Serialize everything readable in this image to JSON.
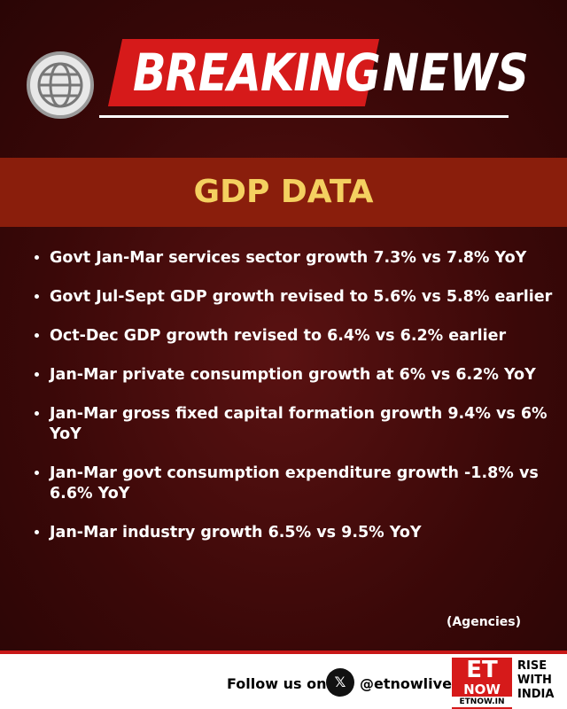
{
  "header": {
    "breaking": "BREAKING",
    "news": "NEWS"
  },
  "section": {
    "title": "GDP DATA"
  },
  "bullets": [
    "Govt Jan-Mar services sector growth 7.3% vs 7.8% YoY",
    "Govt Jul-Sept GDP growth revised to 5.6% vs 5.8% earlier",
    "Oct-Dec GDP growth revised to 6.4% vs 6.2% earlier",
    "Jan-Mar private consumption growth at 6% vs 6.2% YoY",
    "Jan-Mar gross fixed capital formation growth 9.4% vs 6% YoY",
    "Jan-Mar govt consumption expenditure growth -1.8% vs 6.6% YoY",
    "Jan-Mar industry growth 6.5% vs 9.5% YoY"
  ],
  "source": "(Agencies)",
  "footer": {
    "follow": "Follow us on",
    "handle": "@etnowlive",
    "logo_et": "ET",
    "logo_now": "NOW",
    "logo_site": "ETNOW.IN",
    "tagline": "RISE WITH INDIA"
  }
}
